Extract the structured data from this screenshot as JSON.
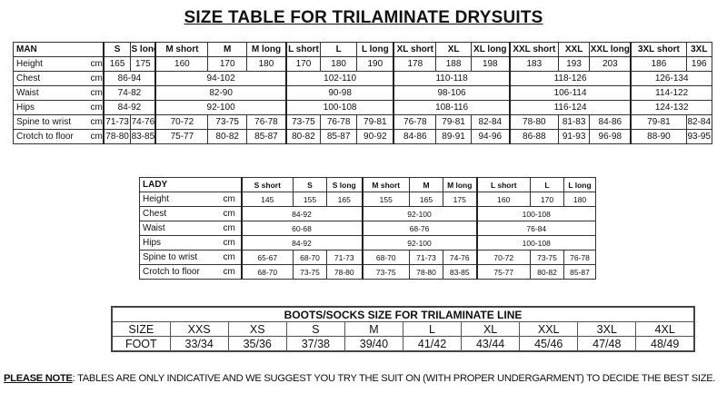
{
  "title": "SIZE TABLE FOR TRILAMINATE DRYSUITS",
  "man": {
    "label": "MAN",
    "unit": "cm",
    "groups": [
      2,
      3,
      3,
      3,
      3,
      2
    ],
    "sizes": [
      "S",
      "S long",
      "M short",
      "M",
      "M long",
      "L short",
      "L",
      "L long",
      "XL short",
      "XL",
      "XL long",
      "XXL short",
      "XXL",
      "XXL long",
      "3XL short",
      "3XL"
    ],
    "rows": [
      {
        "label": "Height",
        "values": [
          "165",
          "175",
          "160",
          "170",
          "180",
          "170",
          "180",
          "190",
          "178",
          "188",
          "198",
          "183",
          "193",
          "203",
          "186",
          "196"
        ]
      },
      {
        "label": "Chest",
        "values": [
          "86-94",
          "94-102",
          "102-110",
          "110-118",
          "118-126",
          "126-134"
        ]
      },
      {
        "label": "Waist",
        "values": [
          "74-82",
          "82-90",
          "90-98",
          "98-106",
          "106-114",
          "114-122"
        ]
      },
      {
        "label": "Hips",
        "values": [
          "84-92",
          "92-100",
          "100-108",
          "108-116",
          "116-124",
          "124-132"
        ]
      },
      {
        "label": "Spine to wrist",
        "values": [
          "71-73",
          "74-76",
          "70-72",
          "73-75",
          "76-78",
          "73-75",
          "76-78",
          "79-81",
          "76-78",
          "79-81",
          "82-84",
          "78-80",
          "81-83",
          "84-86",
          "79-81",
          "82-84"
        ]
      },
      {
        "label": "Crotch to floor",
        "values": [
          "78-80",
          "83-85",
          "75-77",
          "80-82",
          "85-87",
          "80-82",
          "85-87",
          "90-92",
          "84-86",
          "89-91",
          "94-96",
          "86-88",
          "91-93",
          "96-98",
          "88-90",
          "93-95"
        ]
      }
    ]
  },
  "lady": {
    "label": "LADY",
    "unit": "cm",
    "groups": [
      3,
      3,
      3
    ],
    "sizes": [
      "S short",
      "S",
      "S long",
      "M short",
      "M",
      "M long",
      "L  short",
      "L",
      "L    long"
    ],
    "rows": [
      {
        "label": "Height",
        "values": [
          "145",
          "155",
          "165",
          "155",
          "165",
          "175",
          "160",
          "170",
          "180"
        ]
      },
      {
        "label": "Chest",
        "values": [
          "84-92",
          "92-100",
          "100-108"
        ]
      },
      {
        "label": "Waist",
        "values": [
          "60-68",
          "68-76",
          "76-84"
        ]
      },
      {
        "label": "Hips",
        "values": [
          "84-92",
          "92-100",
          "100-108"
        ]
      },
      {
        "label": "Spine to wrist",
        "values": [
          "65-67",
          "68-70",
          "71-73",
          "68-70",
          "71-73",
          "74-76",
          "70-72",
          "73-75",
          "76-78"
        ]
      },
      {
        "label": "Crotch to floor",
        "values": [
          "68-70",
          "73-75",
          "78-80",
          "73-75",
          "78-80",
          "83-85",
          "75-77",
          "80-82",
          "85-87"
        ]
      }
    ]
  },
  "boots": {
    "title": "BOOTS/SOCKS SIZE FOR TRILAMINATE LINE",
    "size_label": "SIZE",
    "foot_label": "FOOT",
    "sizes": [
      "XXS",
      "XS",
      "S",
      "M",
      "L",
      "XL",
      "XXL",
      "3XL",
      "4XL"
    ],
    "foot": [
      "33/34",
      "35/36",
      "37/38",
      "39/40",
      "41/42",
      "43/44",
      "45/46",
      "47/48",
      "48/49"
    ]
  },
  "note": {
    "label": "PLEASE NOTE",
    "text": ": TABLES ARE ONLY INDICATIVE AND WE SUGGEST YOU TRY THE SUIT ON (WITH PROPER UNDERGARMENT) TO DECIDE THE BEST SIZE."
  }
}
